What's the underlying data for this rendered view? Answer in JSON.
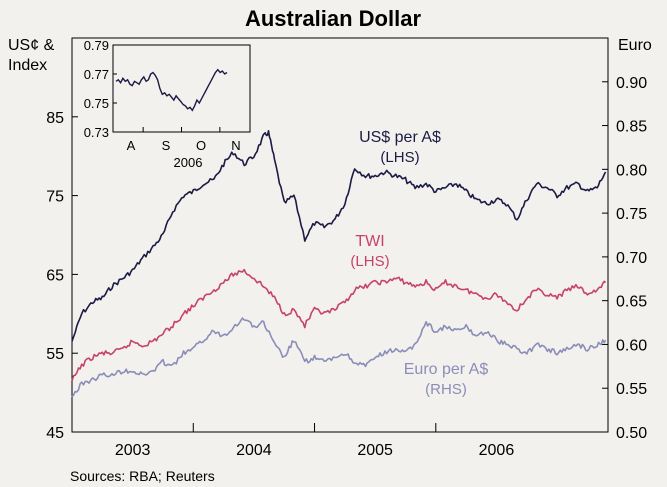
{
  "chart_data": {
    "type": "line",
    "title": "Australian Dollar",
    "source": "Sources: RBA; Reuters",
    "left_axis": {
      "label_line1": "US¢ &",
      "label_line2": "Index",
      "min": 45,
      "max": 95,
      "ticks": [
        45,
        55,
        65,
        75,
        85
      ]
    },
    "right_axis": {
      "label": "Euro",
      "min": 0.5,
      "max": 0.95,
      "ticks": [
        "0.50",
        "0.55",
        "0.60",
        "0.65",
        "0.70",
        "0.75",
        "0.80",
        "0.85",
        "0.90"
      ]
    },
    "x_axis": {
      "start": 2002.5,
      "end": 2006.92,
      "year_labels": [
        "2003",
        "2004",
        "2005",
        "2006"
      ]
    },
    "series": [
      {
        "name": "US$ per A$",
        "label_line1": "US$ per A$",
        "label_line2": "(LHS)",
        "axis": "left",
        "color": "#1b1b45",
        "points": [
          [
            2002.5,
            56.5
          ],
          [
            2002.58,
            60.0
          ],
          [
            2002.67,
            61.5
          ],
          [
            2002.75,
            62.0
          ],
          [
            2002.83,
            63.5
          ],
          [
            2002.92,
            64.5
          ],
          [
            2003.0,
            65.5
          ],
          [
            2003.08,
            67.0
          ],
          [
            2003.17,
            68.5
          ],
          [
            2003.25,
            70.0
          ],
          [
            2003.33,
            73.0
          ],
          [
            2003.42,
            75.0
          ],
          [
            2003.5,
            75.5
          ],
          [
            2003.58,
            76.5
          ],
          [
            2003.67,
            77.0
          ],
          [
            2003.75,
            79.0
          ],
          [
            2003.83,
            80.5
          ],
          [
            2003.92,
            79.0
          ],
          [
            2004.0,
            80.0
          ],
          [
            2004.08,
            82.5
          ],
          [
            2004.12,
            83.0
          ],
          [
            2004.17,
            79.5
          ],
          [
            2004.25,
            74.0
          ],
          [
            2004.33,
            75.0
          ],
          [
            2004.42,
            69.5
          ],
          [
            2004.5,
            71.5
          ],
          [
            2004.58,
            71.0
          ],
          [
            2004.67,
            72.0
          ],
          [
            2004.75,
            74.0
          ],
          [
            2004.83,
            78.5
          ],
          [
            2004.92,
            77.5
          ],
          [
            2005.0,
            77.5
          ],
          [
            2005.08,
            78.0
          ],
          [
            2005.17,
            77.5
          ],
          [
            2005.25,
            77.0
          ],
          [
            2005.33,
            76.0
          ],
          [
            2005.42,
            76.5
          ],
          [
            2005.5,
            75.5
          ],
          [
            2005.58,
            76.0
          ],
          [
            2005.67,
            76.5
          ],
          [
            2005.75,
            75.5
          ],
          [
            2005.83,
            74.5
          ],
          [
            2005.92,
            74.0
          ],
          [
            2006.0,
            74.5
          ],
          [
            2006.08,
            74.0
          ],
          [
            2006.17,
            72.0
          ],
          [
            2006.25,
            74.5
          ],
          [
            2006.33,
            76.5
          ],
          [
            2006.42,
            76.0
          ],
          [
            2006.5,
            75.0
          ],
          [
            2006.58,
            76.0
          ],
          [
            2006.67,
            76.5
          ],
          [
            2006.75,
            75.5
          ],
          [
            2006.83,
            76.0
          ],
          [
            2006.9,
            78.0
          ]
        ]
      },
      {
        "name": "TWI",
        "label_line1": "TWI",
        "label_line2": "(LHS)",
        "axis": "left",
        "color": "#c8416e",
        "points": [
          [
            2002.5,
            51.5
          ],
          [
            2002.58,
            53.5
          ],
          [
            2002.67,
            54.5
          ],
          [
            2002.75,
            55.0
          ],
          [
            2002.83,
            55.0
          ],
          [
            2002.92,
            55.5
          ],
          [
            2003.0,
            56.5
          ],
          [
            2003.08,
            56.0
          ],
          [
            2003.17,
            56.5
          ],
          [
            2003.25,
            57.5
          ],
          [
            2003.33,
            58.5
          ],
          [
            2003.42,
            60.0
          ],
          [
            2003.5,
            61.0
          ],
          [
            2003.58,
            62.0
          ],
          [
            2003.67,
            63.0
          ],
          [
            2003.75,
            64.0
          ],
          [
            2003.83,
            65.0
          ],
          [
            2003.92,
            65.5
          ],
          [
            2004.0,
            64.5
          ],
          [
            2004.08,
            63.5
          ],
          [
            2004.17,
            62.0
          ],
          [
            2004.25,
            60.0
          ],
          [
            2004.33,
            60.5
          ],
          [
            2004.42,
            58.5
          ],
          [
            2004.5,
            60.5
          ],
          [
            2004.58,
            60.0
          ],
          [
            2004.67,
            60.5
          ],
          [
            2004.75,
            61.5
          ],
          [
            2004.83,
            63.0
          ],
          [
            2004.92,
            63.5
          ],
          [
            2005.0,
            64.0
          ],
          [
            2005.08,
            64.0
          ],
          [
            2005.17,
            64.5
          ],
          [
            2005.25,
            64.0
          ],
          [
            2005.33,
            63.5
          ],
          [
            2005.42,
            64.0
          ],
          [
            2005.5,
            63.0
          ],
          [
            2005.58,
            64.0
          ],
          [
            2005.67,
            63.5
          ],
          [
            2005.75,
            63.0
          ],
          [
            2005.83,
            62.5
          ],
          [
            2005.92,
            62.0
          ],
          [
            2006.0,
            62.5
          ],
          [
            2006.08,
            61.5
          ],
          [
            2006.17,
            60.5
          ],
          [
            2006.25,
            62.0
          ],
          [
            2006.33,
            63.0
          ],
          [
            2006.42,
            62.5
          ],
          [
            2006.5,
            62.0
          ],
          [
            2006.58,
            63.0
          ],
          [
            2006.67,
            63.5
          ],
          [
            2006.75,
            62.5
          ],
          [
            2006.83,
            63.0
          ],
          [
            2006.9,
            64.0
          ]
        ]
      },
      {
        "name": "Euro per A$",
        "label_line1": "Euro per A$",
        "label_line2": "(RHS)",
        "axis": "right",
        "color": "#8a8db8",
        "points": [
          [
            2002.5,
            0.54
          ],
          [
            2002.58,
            0.555
          ],
          [
            2002.67,
            0.56
          ],
          [
            2002.75,
            0.565
          ],
          [
            2002.83,
            0.565
          ],
          [
            2002.92,
            0.57
          ],
          [
            2003.0,
            0.57
          ],
          [
            2003.08,
            0.565
          ],
          [
            2003.17,
            0.57
          ],
          [
            2003.25,
            0.58
          ],
          [
            2003.33,
            0.575
          ],
          [
            2003.42,
            0.59
          ],
          [
            2003.5,
            0.595
          ],
          [
            2003.58,
            0.605
          ],
          [
            2003.67,
            0.615
          ],
          [
            2003.75,
            0.61
          ],
          [
            2003.83,
            0.62
          ],
          [
            2003.92,
            0.63
          ],
          [
            2004.0,
            0.62
          ],
          [
            2004.08,
            0.625
          ],
          [
            2004.17,
            0.6
          ],
          [
            2004.25,
            0.585
          ],
          [
            2004.33,
            0.605
          ],
          [
            2004.42,
            0.58
          ],
          [
            2004.5,
            0.585
          ],
          [
            2004.58,
            0.58
          ],
          [
            2004.67,
            0.585
          ],
          [
            2004.75,
            0.59
          ],
          [
            2004.83,
            0.58
          ],
          [
            2004.92,
            0.575
          ],
          [
            2005.0,
            0.585
          ],
          [
            2005.08,
            0.59
          ],
          [
            2005.17,
            0.595
          ],
          [
            2005.25,
            0.59
          ],
          [
            2005.33,
            0.6
          ],
          [
            2005.42,
            0.625
          ],
          [
            2005.5,
            0.615
          ],
          [
            2005.58,
            0.62
          ],
          [
            2005.67,
            0.615
          ],
          [
            2005.75,
            0.62
          ],
          [
            2005.83,
            0.61
          ],
          [
            2005.92,
            0.615
          ],
          [
            2006.0,
            0.605
          ],
          [
            2006.08,
            0.6
          ],
          [
            2006.17,
            0.595
          ],
          [
            2006.25,
            0.59
          ],
          [
            2006.33,
            0.6
          ],
          [
            2006.42,
            0.595
          ],
          [
            2006.5,
            0.59
          ],
          [
            2006.58,
            0.595
          ],
          [
            2006.67,
            0.6
          ],
          [
            2006.75,
            0.595
          ],
          [
            2006.83,
            0.6
          ],
          [
            2006.9,
            0.605
          ]
        ]
      }
    ],
    "inset": {
      "type": "line",
      "y_ticks": [
        "0.79",
        "0.77",
        "0.75",
        "0.73"
      ],
      "y_min": 0.73,
      "y_max": 0.79,
      "x_labels": [
        "A",
        "S",
        "O",
        "N"
      ],
      "year_label": "2006",
      "color": "#1b1b45",
      "values": [
        0.765,
        0.766,
        0.764,
        0.767,
        0.765,
        0.766,
        0.763,
        0.762,
        0.765,
        0.764,
        0.763,
        0.766,
        0.768,
        0.765,
        0.766,
        0.77,
        0.771,
        0.769,
        0.766,
        0.76,
        0.756,
        0.757,
        0.755,
        0.756,
        0.754,
        0.752,
        0.755,
        0.753,
        0.751,
        0.749,
        0.748,
        0.746,
        0.747,
        0.745,
        0.748,
        0.752,
        0.75,
        0.753,
        0.756,
        0.759,
        0.762,
        0.765,
        0.768,
        0.771,
        0.773,
        0.771,
        0.772,
        0.77,
        0.771
      ]
    }
  }
}
